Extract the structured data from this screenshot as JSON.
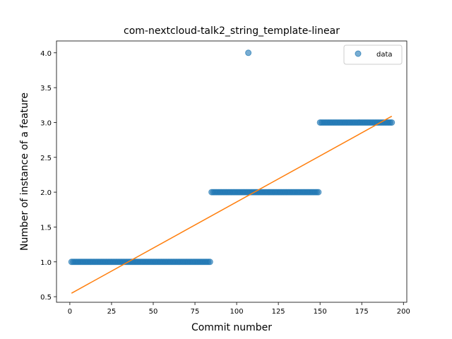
{
  "chart_data": {
    "type": "scatter",
    "title": "com-nextcloud-talk2_string_template-linear",
    "xlabel": "Commit number",
    "ylabel": "Number of instance of a feature",
    "xlim": [
      -8,
      202
    ],
    "ylim": [
      0.42,
      4.17
    ],
    "xticks": [
      0,
      25,
      50,
      75,
      100,
      125,
      150,
      175,
      200
    ],
    "xtick_labels": [
      "0",
      "25",
      "50",
      "75",
      "100",
      "125",
      "150",
      "175",
      "200"
    ],
    "yticks": [
      0.5,
      1.0,
      1.5,
      2.0,
      2.5,
      3.0,
      3.5,
      4.0
    ],
    "ytick_labels": [
      "0.5",
      "1.0",
      "1.5",
      "2.0",
      "2.5",
      "3.0",
      "3.5",
      "4.0"
    ],
    "grid": false,
    "legend_position": "top-right",
    "series": [
      {
        "name": "data",
        "kind": "scatter",
        "color": "#1f77b4",
        "segments": [
          {
            "x_start": 1,
            "x_end": 84,
            "y": 1.0
          },
          {
            "x_start": 85,
            "x_end": 149,
            "y": 2.0
          },
          {
            "x_start": 150,
            "x_end": 193,
            "y": 3.0
          }
        ],
        "outliers": [
          {
            "x": 107,
            "y": 4.0
          }
        ]
      },
      {
        "kind": "line",
        "color": "#ff7f0e",
        "points": [
          {
            "x": 1,
            "y": 0.55
          },
          {
            "x": 193,
            "y": 3.09
          }
        ]
      }
    ]
  }
}
